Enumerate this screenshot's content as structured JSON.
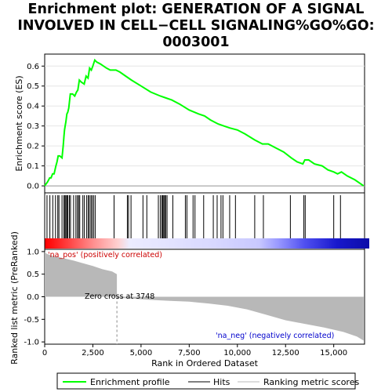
{
  "chart_data": [
    {
      "type": "line",
      "title_lines": [
        "Enrichment plot: GENERATION OF A SIGNAL",
        "INVOLVED IN CELL−CELL SIGNALING%GO%GO:",
        "0003001"
      ],
      "ylabel": "Enrichment score (ES)",
      "xlim": [
        0,
        16600
      ],
      "ylim": [
        -0.035,
        0.66
      ],
      "yticks": [
        "0.0",
        "0.1",
        "0.2",
        "0.3",
        "0.4",
        "0.5",
        "0.6"
      ],
      "grid": true,
      "series": [
        {
          "name": "Enrichment profile",
          "color": "#00ff00",
          "x": [
            0,
            150,
            260,
            330,
            410,
            490,
            580,
            640,
            700,
            780,
            900,
            960,
            1000,
            1030,
            1060,
            1100,
            1150,
            1200,
            1250,
            1330,
            1450,
            1560,
            1650,
            1720,
            1800,
            1900,
            2050,
            2150,
            2250,
            2330,
            2420,
            2500,
            2600,
            2700,
            2900,
            3200,
            3400,
            3550,
            3700,
            3900,
            4200,
            4500,
            5000,
            5500,
            6000,
            6300,
            6600,
            7000,
            7500,
            8000,
            8300,
            8600,
            9000,
            9300,
            9600,
            10000,
            10400,
            10900,
            11300,
            11600,
            12000,
            12400,
            12800,
            13100,
            13400,
            13500,
            13700,
            14000,
            14400,
            14700,
            15000,
            15200,
            15400,
            15700,
            16100,
            16550
          ],
          "y": [
            0.0,
            0.02,
            0.04,
            0.04,
            0.06,
            0.06,
            0.1,
            0.12,
            0.15,
            0.15,
            0.14,
            0.2,
            0.25,
            0.28,
            0.3,
            0.32,
            0.36,
            0.37,
            0.39,
            0.46,
            0.46,
            0.45,
            0.47,
            0.48,
            0.53,
            0.52,
            0.51,
            0.55,
            0.54,
            0.59,
            0.58,
            0.6,
            0.63,
            0.62,
            0.61,
            0.59,
            0.58,
            0.58,
            0.58,
            0.57,
            0.55,
            0.53,
            0.5,
            0.47,
            0.45,
            0.44,
            0.43,
            0.41,
            0.38,
            0.36,
            0.35,
            0.33,
            0.31,
            0.3,
            0.29,
            0.28,
            0.26,
            0.23,
            0.21,
            0.21,
            0.19,
            0.17,
            0.14,
            0.12,
            0.11,
            0.13,
            0.13,
            0.11,
            0.1,
            0.08,
            0.07,
            0.06,
            0.07,
            0.05,
            0.03,
            0.0
          ]
        }
      ]
    },
    {
      "type": "hits",
      "hits": [
        120,
        270,
        420,
        560,
        680,
        740,
        900,
        1000,
        1050,
        1100,
        1150,
        1200,
        1280,
        1340,
        1500,
        1620,
        1700,
        1760,
        1820,
        1980,
        2060,
        2180,
        2260,
        2320,
        2400,
        2460,
        2540,
        2620,
        3600,
        4290,
        4350,
        4480,
        5100,
        5300,
        5900,
        6000,
        6080,
        6130,
        6180,
        6230,
        6280,
        6350,
        6650,
        7300,
        7380,
        7700,
        7800,
        8250,
        8750,
        8950,
        9150,
        9250,
        9600,
        9900,
        10900,
        11350,
        12750,
        13450,
        13520,
        15000,
        15350
      ],
      "gradient_stops": [
        {
          "at": 0.0,
          "color": "#ff0000"
        },
        {
          "at": 0.07,
          "color": "#ff4040"
        },
        {
          "at": 0.15,
          "color": "#ff9090"
        },
        {
          "at": 0.225,
          "color": "#ffd0d0"
        },
        {
          "at": 0.26,
          "color": "#ececff"
        },
        {
          "at": 0.52,
          "color": "#d8d8ff"
        },
        {
          "at": 0.66,
          "color": "#c8c8ff"
        },
        {
          "at": 0.72,
          "color": "#9898ff"
        },
        {
          "at": 0.8,
          "color": "#5050f0"
        },
        {
          "at": 0.9,
          "color": "#1818cc"
        },
        {
          "at": 1.0,
          "color": "#0c0ca8"
        }
      ]
    },
    {
      "type": "area",
      "ylabel": "Ranked list metric (PreRanked)",
      "xlabel": "Rank in Ordered Dataset",
      "xlim": [
        0,
        16600
      ],
      "ylim": [
        -1.05,
        1.05
      ],
      "xticks": [
        "0",
        "2,500",
        "5,000",
        "7,500",
        "10,000",
        "12,500",
        "15,000"
      ],
      "yticks": [
        "1.0",
        "0.5",
        "0.0",
        "-0.5",
        "-1.0"
      ],
      "zero_cross": 3748,
      "series": [
        {
          "name": "Ranking metric scores",
          "color": "#b8b8b8",
          "x": [
            0,
            100,
            300,
            600,
            1000,
            1500,
            2000,
            2500,
            3000,
            3500,
            3747,
            3749,
            4500,
            5500,
            6500,
            7500,
            8500,
            9500,
            10500,
            11500,
            12500,
            13500,
            14500,
            15500,
            16200,
            16550
          ],
          "y": [
            1.0,
            0.95,
            0.92,
            0.89,
            0.85,
            0.8,
            0.74,
            0.68,
            0.61,
            0.56,
            0.5,
            -0.02,
            -0.04,
            -0.07,
            -0.09,
            -0.11,
            -0.15,
            -0.2,
            -0.28,
            -0.4,
            -0.52,
            -0.6,
            -0.68,
            -0.78,
            -0.88,
            -0.97
          ]
        }
      ]
    }
  ],
  "annotations": {
    "pos_label": "'na_pos' (positively correlated)",
    "neg_label": "'na_neg' (negatively correlated)",
    "zero_cross_label": "Zero cross at 3748"
  },
  "legend": {
    "items": [
      {
        "label": "Enrichment profile",
        "color": "#00ff00",
        "style": "line-thick"
      },
      {
        "label": "Hits",
        "color": "#000000",
        "style": "line"
      },
      {
        "label": "Ranking metric scores",
        "color": "#b8b8b8",
        "style": "line-thin"
      }
    ]
  },
  "colors": {
    "pos_label": "#cc0000",
    "neg_label": "#0000cc",
    "grid": "#e6e6e6"
  }
}
